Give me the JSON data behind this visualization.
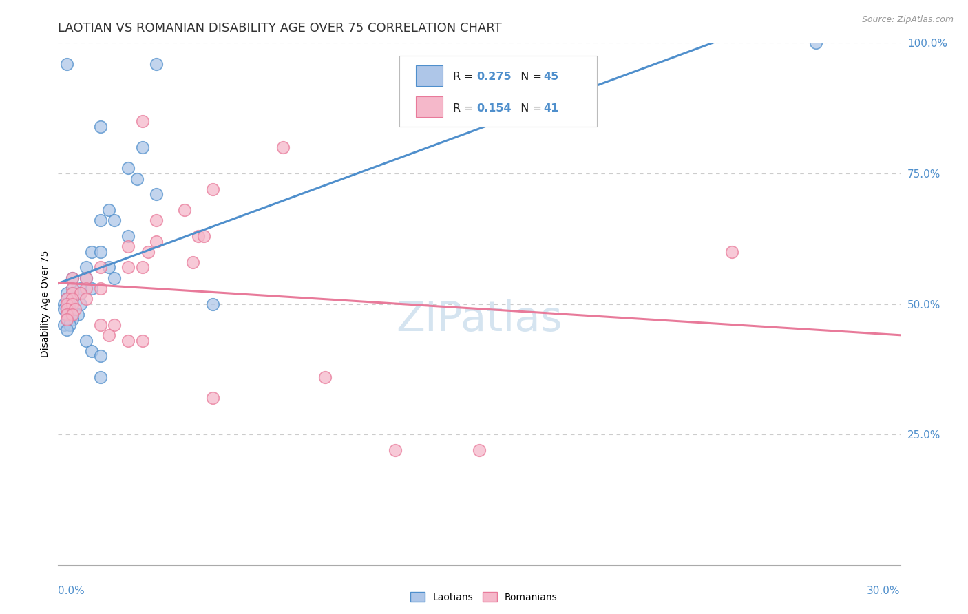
{
  "title": "LAOTIAN VS ROMANIAN DISABILITY AGE OVER 75 CORRELATION CHART",
  "source": "Source: ZipAtlas.com",
  "ylabel": "Disability Age Over 75",
  "x_min": 0.0,
  "x_max": 30.0,
  "y_min": 0.0,
  "y_max": 100.0,
  "y_ticks_right": [
    25.0,
    50.0,
    75.0,
    100.0
  ],
  "laotian_R": 0.275,
  "laotian_N": 45,
  "romanian_R": 0.154,
  "romanian_N": 41,
  "laotian_color": "#aec6e8",
  "romanian_color": "#f5b8ca",
  "laotian_line_color": "#4f8fcc",
  "romanian_line_color": "#e87a9a",
  "laotian_edge_color": "#4f8fcc",
  "romanian_edge_color": "#e87a9a",
  "background_color": "#ffffff",
  "watermark_text": "ZIPatlas",
  "watermark_color": "#d5e4f0",
  "grid_color": "#cccccc",
  "title_color": "#333333",
  "source_color": "#999999",
  "right_tick_color": "#4f8fcc",
  "laotian_scatter": [
    [
      0.3,
      96.0
    ],
    [
      3.5,
      96.0
    ],
    [
      1.5,
      84.0
    ],
    [
      3.0,
      80.0
    ],
    [
      2.5,
      76.0
    ],
    [
      2.8,
      74.0
    ],
    [
      3.5,
      71.0
    ],
    [
      1.8,
      68.0
    ],
    [
      1.5,
      66.0
    ],
    [
      2.0,
      66.0
    ],
    [
      2.5,
      63.0
    ],
    [
      1.2,
      60.0
    ],
    [
      1.5,
      60.0
    ],
    [
      1.0,
      57.0
    ],
    [
      1.8,
      57.0
    ],
    [
      0.5,
      55.0
    ],
    [
      1.0,
      55.0
    ],
    [
      2.0,
      55.0
    ],
    [
      0.5,
      53.0
    ],
    [
      0.8,
      53.0
    ],
    [
      1.2,
      53.0
    ],
    [
      0.3,
      52.0
    ],
    [
      0.5,
      52.0
    ],
    [
      0.8,
      52.0
    ],
    [
      0.3,
      51.0
    ],
    [
      0.5,
      51.0
    ],
    [
      0.2,
      50.0
    ],
    [
      0.4,
      50.0
    ],
    [
      0.8,
      50.0
    ],
    [
      5.5,
      50.0
    ],
    [
      0.2,
      49.0
    ],
    [
      0.4,
      49.0
    ],
    [
      0.3,
      48.0
    ],
    [
      0.5,
      48.0
    ],
    [
      0.7,
      48.0
    ],
    [
      0.3,
      47.0
    ],
    [
      0.5,
      47.0
    ],
    [
      0.2,
      46.0
    ],
    [
      0.4,
      46.0
    ],
    [
      0.3,
      45.0
    ],
    [
      1.0,
      43.0
    ],
    [
      1.2,
      41.0
    ],
    [
      1.5,
      40.0
    ],
    [
      1.5,
      36.0
    ],
    [
      27.0,
      100.0
    ]
  ],
  "romanian_scatter": [
    [
      3.0,
      85.0
    ],
    [
      8.0,
      80.0
    ],
    [
      5.5,
      72.0
    ],
    [
      4.5,
      68.0
    ],
    [
      3.5,
      66.0
    ],
    [
      5.0,
      63.0
    ],
    [
      5.2,
      63.0
    ],
    [
      3.5,
      62.0
    ],
    [
      2.5,
      61.0
    ],
    [
      3.2,
      60.0
    ],
    [
      4.8,
      58.0
    ],
    [
      1.5,
      57.0
    ],
    [
      2.5,
      57.0
    ],
    [
      3.0,
      57.0
    ],
    [
      0.5,
      55.0
    ],
    [
      1.0,
      55.0
    ],
    [
      0.5,
      53.0
    ],
    [
      1.0,
      53.0
    ],
    [
      1.5,
      53.0
    ],
    [
      0.5,
      52.0
    ],
    [
      0.8,
      52.0
    ],
    [
      0.3,
      51.0
    ],
    [
      0.5,
      51.0
    ],
    [
      1.0,
      51.0
    ],
    [
      0.3,
      50.0
    ],
    [
      0.5,
      50.0
    ],
    [
      0.3,
      49.0
    ],
    [
      0.6,
      49.0
    ],
    [
      0.3,
      48.0
    ],
    [
      0.5,
      48.0
    ],
    [
      0.3,
      47.0
    ],
    [
      1.5,
      46.0
    ],
    [
      2.0,
      46.0
    ],
    [
      1.8,
      44.0
    ],
    [
      2.5,
      43.0
    ],
    [
      3.0,
      43.0
    ],
    [
      9.5,
      36.0
    ],
    [
      5.5,
      32.0
    ],
    [
      12.0,
      22.0
    ],
    [
      15.0,
      22.0
    ],
    [
      24.0,
      60.0
    ]
  ]
}
